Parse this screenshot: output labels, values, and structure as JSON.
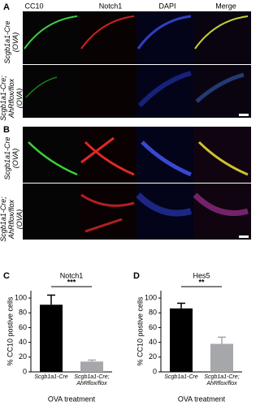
{
  "panel_labels": [
    "A",
    "B",
    "C",
    "D"
  ],
  "image_columns": [
    "CC10",
    "Notch1",
    "DAPI",
    "Merge"
  ],
  "image_rows": [
    "Scgb1a1-Cre (OVA)",
    "Scgb1a1-Cre; AhRflox/flox (OVA)"
  ],
  "chart_data": [
    {
      "type": "bar",
      "title": "Notch1",
      "y_label": "% CC10 postive cells",
      "x_label": "OVA treatment",
      "categories": [
        "Scgb1a1-Cre",
        "Scgb1a1-Cre; AhRflox/flox"
      ],
      "values": [
        91,
        14
      ],
      "errors": [
        13,
        2
      ],
      "colors": [
        "#000000",
        "#a6a7aa"
      ],
      "significance": "***",
      "ylim": [
        0,
        110
      ],
      "yticks": [
        0,
        20,
        40,
        60,
        80,
        100
      ]
    },
    {
      "type": "bar",
      "title": "Hes5",
      "y_label": "% CC10 postive cells",
      "x_label": "OVA treatment",
      "categories": [
        "Scgb1a1-Cre",
        "Scgb1a1-Cre; AhRflox/flox"
      ],
      "values": [
        86,
        38
      ],
      "errors": [
        7,
        9
      ],
      "colors": [
        "#000000",
        "#a6a7aa"
      ],
      "significance": "**",
      "ylim": [
        0,
        110
      ],
      "yticks": [
        0,
        20,
        40,
        60,
        80,
        100
      ]
    }
  ]
}
